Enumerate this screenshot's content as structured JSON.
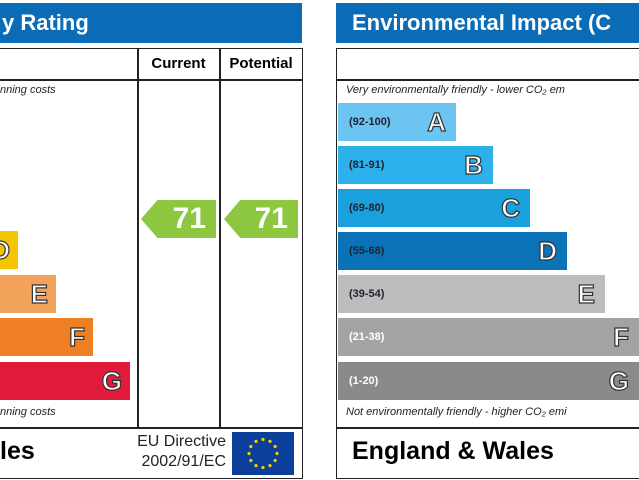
{
  "energy": {
    "title": "y Rating",
    "col_current": "Current",
    "col_potential": "Potential",
    "top_note": "nning costs",
    "bottom_note": "nning costs",
    "footer_region": "les",
    "eu_line1": "EU Directive",
    "eu_line2": "2002/91/EC",
    "current": "71",
    "potential": "71"
  },
  "environment": {
    "title": "Environmental Impact (C",
    "top_note": "Very environmentally friendly - lower CO₂ em",
    "bottom_note": "Not environmentally friendly - higher CO₂ emi",
    "footer_region": "England & Wales"
  },
  "chart_data": [
    {
      "type": "bar",
      "name": "energy-rating",
      "bands": [
        {
          "letter": "D",
          "color": "#f5c400"
        },
        {
          "letter": "E",
          "color": "#f3a25c"
        },
        {
          "letter": "F",
          "color": "#ee8023"
        },
        {
          "letter": "G",
          "color": "#e21b3c"
        }
      ],
      "current": 71,
      "potential": 71,
      "arrow_color": "#8dc63f"
    },
    {
      "type": "bar",
      "name": "environmental-impact",
      "bands": [
        {
          "range": "(92-100)",
          "letter": "A",
          "color": "#6cc4f0"
        },
        {
          "range": "(81-91)",
          "letter": "B",
          "color": "#2cb1ea"
        },
        {
          "range": "(69-80)",
          "letter": "C",
          "color": "#1aa0dc"
        },
        {
          "range": "(55-68)",
          "letter": "D",
          "color": "#0a73b8"
        },
        {
          "range": "(39-54)",
          "letter": "E",
          "color": "#bdbdbd"
        },
        {
          "range": "(21-38)",
          "letter": "F",
          "color": "#a3a3a3"
        },
        {
          "range": "(1-20)",
          "letter": "G",
          "color": "#8a8a8a"
        }
      ]
    }
  ]
}
